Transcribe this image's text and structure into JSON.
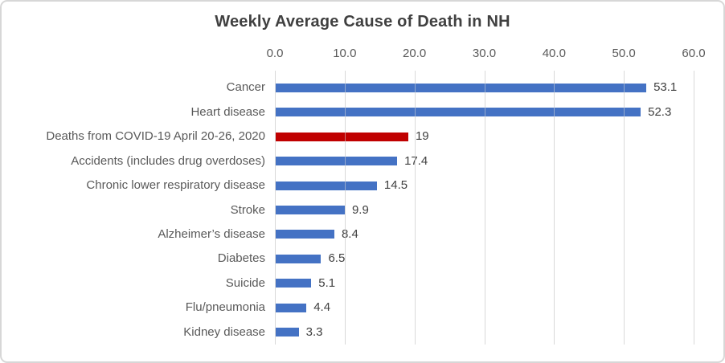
{
  "chart_data": {
    "type": "bar",
    "orientation": "horizontal",
    "title": "Weekly Average Cause of Death in NH",
    "categories": [
      "Cancer",
      "Heart disease",
      "Deaths from COVID-19 April 20-26, 2020",
      "Accidents (includes drug overdoses)",
      "Chronic lower respiratory disease",
      "Stroke",
      "Alzheimer’s disease",
      "Diabetes",
      "Suicide",
      "Flu/pneumonia",
      "Kidney disease"
    ],
    "values": [
      53.1,
      52.3,
      19,
      17.4,
      14.5,
      9.9,
      8.4,
      6.5,
      5.1,
      4.4,
      3.3
    ],
    "value_labels": [
      "53.1",
      "52.3",
      "19",
      "17.4",
      "14.5",
      "9.9",
      "8.4",
      "6.5",
      "5.1",
      "4.4",
      "3.3"
    ],
    "highlight_index": 2,
    "x_ticks": [
      0,
      10,
      20,
      30,
      40,
      50,
      60
    ],
    "x_tick_labels": [
      "0.0",
      "10.0",
      "20.0",
      "30.0",
      "40.0",
      "50.0",
      "60.0"
    ],
    "xlim": [
      0,
      60
    ],
    "axis_position": "top",
    "grid": "vertical",
    "legend": "none",
    "colors": {
      "bar": "#4472C4",
      "highlight": "#C00000",
      "gridline": "#D9D9D9",
      "title": "#404040",
      "category_label": "#595959",
      "tick_label": "#595959",
      "value_label": "#404040",
      "border": "#D7D7D7",
      "background": "#FFFFFF"
    }
  }
}
